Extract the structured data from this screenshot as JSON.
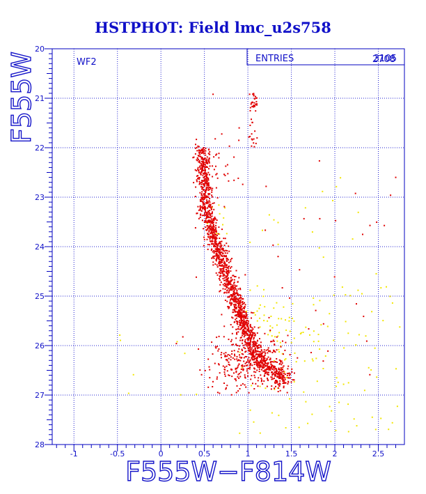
{
  "chart_data": {
    "type": "scatter",
    "title": "HSTPHOT: Field lmc_u2s758",
    "xlabel": "F555W−F814W",
    "ylabel": "F555W",
    "panel_label": "WF2",
    "stats_box": {
      "label": "ENTRIES",
      "values": [
        "2708",
        "3105"
      ]
    },
    "xlim": [
      -1.25,
      2.8
    ],
    "ylim": [
      20,
      28
    ],
    "y_inverted": true,
    "grid": true,
    "grid_style": "dotted",
    "x_ticks": [
      "-1",
      "-0.5",
      "0",
      "0.5",
      "1",
      "1.5",
      "2",
      "2.5"
    ],
    "y_ticks": [
      "20",
      "21",
      "22",
      "23",
      "24",
      "25",
      "26",
      "27",
      "28"
    ],
    "colors": {
      "text": "#1010c8",
      "frame": "#0000c0",
      "grid": "#2020d0",
      "primary": "#e00000",
      "secondary": "#f2e600"
    },
    "series": [
      {
        "color": "#e00000",
        "features": [
          {
            "kind": "ridge",
            "points": [
              [
                0.46,
                22.05
              ],
              [
                0.5,
                22.6
              ],
              [
                0.52,
                23.2
              ],
              [
                0.58,
                23.7
              ],
              [
                0.68,
                24.2
              ],
              [
                0.78,
                24.7
              ],
              [
                0.88,
                25.2
              ],
              [
                0.98,
                25.7
              ],
              [
                1.08,
                26.1
              ],
              [
                1.22,
                26.45
              ],
              [
                1.45,
                26.7
              ]
            ],
            "count": 1650,
            "scatter": [
              0.045,
              0.1
            ]
          },
          {
            "kind": "cluster",
            "x": 1.07,
            "y": 21.1,
            "sx": 0.025,
            "sy": 0.1,
            "count": 30
          },
          {
            "kind": "cluster",
            "x": 1.06,
            "y": 21.7,
            "sx": 0.03,
            "sy": 0.25,
            "count": 16
          },
          {
            "kind": "cluster",
            "x": 1.0,
            "y": 26.3,
            "sx": 0.22,
            "sy": 0.28,
            "count": 330
          },
          {
            "kind": "cluster",
            "x": 0.68,
            "y": 22.4,
            "sx": 0.14,
            "sy": 0.3,
            "count": 30
          },
          {
            "kind": "uniform",
            "xr": [
              0.1,
              2.7
            ],
            "yr": [
              22.0,
              27.0
            ],
            "count": 40
          },
          {
            "kind": "points",
            "coords": [
              [
                1.87,
                25.56
              ],
              [
                1.78,
                25.29
              ],
              [
                1.48,
                25.04
              ],
              [
                1.02,
                20.92
              ],
              [
                0.6,
                20.92
              ],
              [
                0.9,
                21.6
              ],
              [
                2.7,
                22.6
              ],
              [
                2.33,
                25.41
              ],
              [
                1.29,
                23.97
              ],
              [
                0.84,
                22.19
              ]
            ]
          }
        ]
      },
      {
        "color": "#f2e600",
        "features": [
          {
            "kind": "uniform",
            "xr": [
              0.9,
              2.75
            ],
            "yr": [
              24.8,
              27.8
            ],
            "count": 110
          },
          {
            "kind": "cluster",
            "x": 0.62,
            "y": 23.6,
            "sx": 0.08,
            "sy": 0.3,
            "count": 12
          },
          {
            "kind": "cluster",
            "x": 1.35,
            "y": 25.6,
            "sx": 0.2,
            "sy": 0.3,
            "count": 40
          },
          {
            "kind": "uniform",
            "xr": [
              -0.5,
              0.5
            ],
            "yr": [
              25.5,
              27.0
            ],
            "count": 8
          },
          {
            "kind": "uniform",
            "xr": [
              1.0,
              2.75
            ],
            "yr": [
              22.6,
              24.8
            ],
            "count": 18
          }
        ]
      }
    ]
  }
}
